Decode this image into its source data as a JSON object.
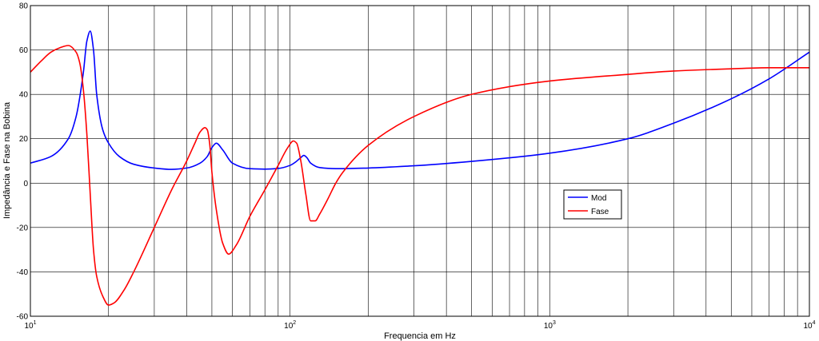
{
  "chart_data": {
    "type": "line",
    "title": "",
    "xlabel": "Frequencia   em   Hz",
    "ylabel": "Impedância   e   Fase   na   Bobina",
    "x_scale": "log",
    "xlim": [
      10,
      10000
    ],
    "ylim": [
      -60,
      80
    ],
    "grid": true,
    "legend_position": "center-right",
    "x_tick_labels": [
      {
        "value": 10,
        "base": "10",
        "exp": "1"
      },
      {
        "value": 100,
        "base": "10",
        "exp": "2"
      },
      {
        "value": 1000,
        "base": "10",
        "exp": "3"
      },
      {
        "value": 10000,
        "base": "10",
        "exp": "4"
      }
    ],
    "y_ticks": [
      -60,
      -40,
      -20,
      0,
      20,
      40,
      60,
      80
    ],
    "series": [
      {
        "name": "Mod",
        "color": "#0000ff",
        "x": [
          10,
          12,
          14,
          15,
          16,
          16.5,
          17,
          17.5,
          18,
          19,
          20,
          22,
          25,
          30,
          35,
          40,
          45,
          48,
          50,
          52,
          55,
          60,
          70,
          80,
          90,
          100,
          105,
          110,
          113,
          116,
          120,
          130,
          150,
          200,
          300,
          500,
          1000,
          2000,
          3000,
          5000,
          7000,
          10000
        ],
        "y": [
          9,
          12,
          20,
          30,
          50,
          64,
          68.5,
          60,
          40,
          24,
          18,
          12,
          8.5,
          6.8,
          6.2,
          6.8,
          9,
          12,
          16,
          18,
          15,
          9,
          6.5,
          6.3,
          6.6,
          8,
          9.5,
          11.5,
          12.5,
          11.5,
          9,
          7,
          6.5,
          6.8,
          7.8,
          9.8,
          13.5,
          20,
          27,
          38,
          47,
          59
        ]
      },
      {
        "name": "Fase",
        "color": "#ff0000",
        "x": [
          10,
          11,
          12,
          13,
          14,
          15,
          15.5,
          16,
          16.5,
          17,
          17.5,
          18,
          19,
          20,
          21,
          23,
          25,
          30,
          35,
          40,
          43,
          45,
          47,
          48,
          49,
          50,
          52,
          55,
          58,
          62,
          70,
          80,
          90,
          98,
          103,
          106,
          110,
          115,
          120,
          125,
          130,
          140,
          150,
          160,
          200,
          300,
          500,
          1000,
          2000,
          3000,
          5000,
          7000,
          10000
        ],
        "y": [
          50,
          55,
          59,
          61,
          62,
          59,
          54,
          42,
          22,
          -5,
          -30,
          -42,
          -51,
          -55,
          -54,
          -48,
          -40,
          -20,
          -3,
          10,
          18,
          23,
          25,
          24,
          18,
          5,
          -12,
          -27,
          -32,
          -28,
          -15,
          -3,
          8,
          16,
          19,
          18,
          10,
          -5,
          -17,
          -17,
          -14,
          -7,
          0,
          5,
          17,
          30,
          40,
          46,
          49,
          50.5,
          51.5,
          52,
          52
        ]
      }
    ]
  }
}
